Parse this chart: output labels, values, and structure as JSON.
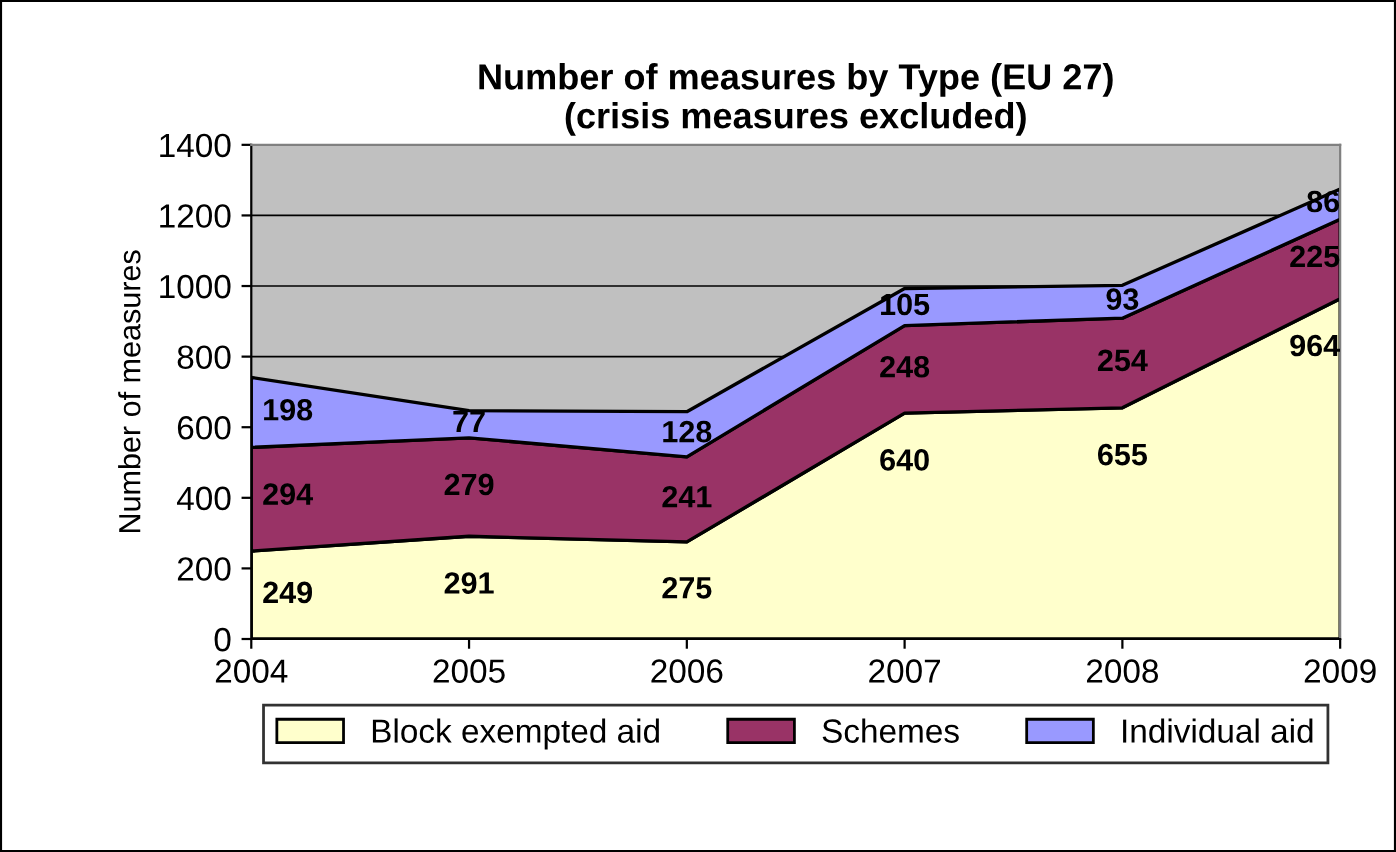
{
  "chart_data": {
    "type": "area",
    "title": "Number of measures by Type (EU 27)\n(crisis measures excluded)",
    "ylabel": "Number of measures",
    "categories": [
      "2004",
      "2005",
      "2006",
      "2007",
      "2008",
      "2009"
    ],
    "stacked": true,
    "data_labels": true,
    "series": [
      {
        "name": "Block exempted aid",
        "color": "#ffffcc",
        "values": [
          249,
          291,
          275,
          640,
          655,
          964
        ]
      },
      {
        "name": "Schemes",
        "color": "#993366",
        "values": [
          294,
          279,
          241,
          248,
          254,
          225
        ]
      },
      {
        "name": "Individual aid",
        "color": "#9999ff",
        "values": [
          198,
          77,
          128,
          105,
          93,
          86
        ]
      }
    ],
    "ylim": [
      0,
      1400
    ],
    "yticks": [
      0,
      200,
      400,
      600,
      800,
      1000,
      1200,
      1400
    ],
    "grid": "y",
    "legend": "bottom"
  }
}
